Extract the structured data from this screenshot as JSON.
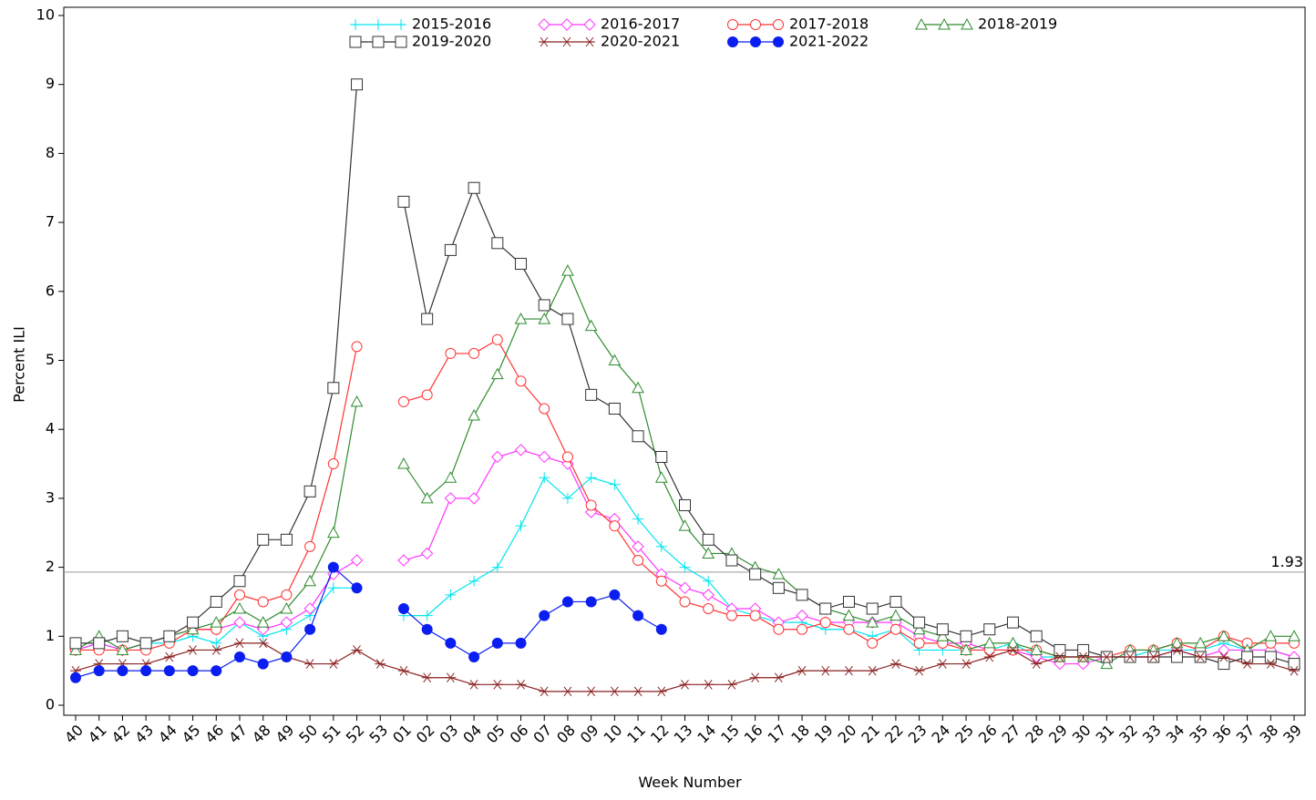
{
  "chart_data": {
    "type": "line",
    "x_label": "Week Number",
    "y_label": "Percent ILI",
    "categories": [
      "40",
      "41",
      "42",
      "43",
      "44",
      "45",
      "46",
      "47",
      "48",
      "49",
      "50",
      "51",
      "52",
      "53",
      "01",
      "02",
      "03",
      "04",
      "05",
      "06",
      "07",
      "08",
      "09",
      "10",
      "11",
      "12",
      "13",
      "14",
      "15",
      "16",
      "17",
      "18",
      "19",
      "20",
      "21",
      "22",
      "23",
      "24",
      "25",
      "26",
      "27",
      "28",
      "29",
      "30",
      "31",
      "32",
      "33",
      "34",
      "35",
      "36",
      "37",
      "38",
      "39"
    ],
    "ylim": [
      0,
      10
    ],
    "yticks": [
      0,
      1,
      2,
      3,
      4,
      5,
      6,
      7,
      8,
      9,
      10
    ],
    "baseline": 1.93,
    "series": [
      {
        "name": "2015-2016",
        "color": "#00e5ee",
        "marker": "plus",
        "values": [
          0.8,
          0.9,
          0.8,
          0.9,
          0.9,
          1.0,
          0.9,
          1.2,
          1.0,
          1.1,
          1.3,
          1.7,
          1.7,
          null,
          1.3,
          1.3,
          1.6,
          1.8,
          2.0,
          2.6,
          3.3,
          3.0,
          3.3,
          3.2,
          2.7,
          2.3,
          2.0,
          1.8,
          1.4,
          1.3,
          1.2,
          1.2,
          1.1,
          1.1,
          1.0,
          1.1,
          0.8,
          0.8,
          0.8,
          0.8,
          0.9,
          0.7,
          0.7,
          0.7,
          0.7,
          0.7,
          0.8,
          0.8,
          0.8,
          0.9,
          0.8,
          0.8,
          0.7
        ]
      },
      {
        "name": "2016-2017",
        "color": "#ff33ff",
        "marker": "diamond",
        "values": [
          0.8,
          0.9,
          0.8,
          0.9,
          1.0,
          1.1,
          1.1,
          1.2,
          1.1,
          1.2,
          1.4,
          1.9,
          2.1,
          null,
          2.1,
          2.2,
          3.0,
          3.0,
          3.6,
          3.7,
          3.6,
          3.5,
          2.8,
          2.7,
          2.3,
          1.9,
          1.7,
          1.6,
          1.4,
          1.4,
          1.2,
          1.3,
          1.2,
          1.2,
          1.2,
          1.2,
          1.0,
          0.9,
          0.9,
          0.8,
          0.8,
          0.7,
          0.6,
          0.6,
          0.7,
          0.7,
          0.7,
          0.8,
          0.7,
          0.8,
          0.8,
          0.8,
          0.7
        ]
      },
      {
        "name": "2017-2018",
        "color": "#ff3333",
        "marker": "circle",
        "values": [
          0.8,
          0.8,
          0.8,
          0.8,
          0.9,
          1.1,
          1.1,
          1.6,
          1.5,
          1.6,
          2.3,
          3.5,
          5.2,
          null,
          4.4,
          4.5,
          5.1,
          5.1,
          5.3,
          4.7,
          4.3,
          3.6,
          2.9,
          2.6,
          2.1,
          1.8,
          1.5,
          1.4,
          1.3,
          1.3,
          1.1,
          1.1,
          1.2,
          1.1,
          0.9,
          1.1,
          0.9,
          0.9,
          0.8,
          0.8,
          0.8,
          0.8,
          0.7,
          0.7,
          0.7,
          0.8,
          0.8,
          0.9,
          0.8,
          1.0,
          0.9,
          0.9,
          0.9
        ]
      },
      {
        "name": "2018-2019",
        "color": "#2e8b2e",
        "marker": "triangle",
        "values": [
          0.8,
          1.0,
          0.8,
          0.9,
          1.0,
          1.1,
          1.2,
          1.4,
          1.2,
          1.4,
          1.8,
          2.5,
          4.4,
          null,
          3.5,
          3.0,
          3.3,
          4.2,
          4.8,
          5.6,
          5.6,
          6.3,
          5.5,
          5.0,
          4.6,
          3.3,
          2.6,
          2.2,
          2.2,
          2.0,
          1.9,
          1.6,
          1.4,
          1.3,
          1.2,
          1.3,
          1.1,
          1.0,
          0.8,
          0.9,
          0.9,
          0.8,
          0.7,
          0.7,
          0.6,
          0.8,
          0.8,
          0.9,
          0.9,
          1.0,
          0.8,
          1.0,
          1.0
        ]
      },
      {
        "name": "2019-2020",
        "color": "#333333",
        "marker": "square",
        "values": [
          0.9,
          0.9,
          1.0,
          0.9,
          1.0,
          1.2,
          1.5,
          1.8,
          2.4,
          2.4,
          3.1,
          4.6,
          9.0,
          null,
          7.3,
          5.6,
          6.6,
          7.5,
          6.7,
          6.4,
          5.8,
          5.6,
          4.5,
          4.3,
          3.9,
          3.6,
          2.9,
          2.4,
          2.1,
          1.9,
          1.7,
          1.6,
          1.4,
          1.5,
          1.4,
          1.5,
          1.2,
          1.1,
          1.0,
          1.1,
          1.2,
          1.0,
          0.8,
          0.8,
          0.7,
          0.7,
          0.7,
          0.7,
          0.7,
          0.6,
          0.7,
          0.7,
          0.6
        ]
      },
      {
        "name": "2020-2021",
        "color": "#8b2222",
        "marker": "star",
        "values": [
          0.5,
          0.6,
          0.6,
          0.6,
          0.7,
          0.8,
          0.8,
          0.9,
          0.9,
          0.7,
          0.6,
          0.6,
          0.8,
          0.6,
          0.5,
          0.4,
          0.4,
          0.3,
          0.3,
          0.3,
          0.2,
          0.2,
          0.2,
          0.2,
          0.2,
          0.2,
          0.3,
          0.3,
          0.3,
          0.4,
          0.4,
          0.5,
          0.5,
          0.5,
          0.5,
          0.6,
          0.5,
          0.6,
          0.6,
          0.7,
          0.8,
          0.6,
          0.7,
          0.7,
          0.7,
          0.7,
          0.7,
          0.8,
          0.7,
          0.7,
          0.6,
          0.6,
          0.5
        ]
      },
      {
        "name": "2021-2022",
        "color": "#0a1ef0",
        "marker": "dot",
        "values": [
          0.4,
          0.5,
          0.5,
          0.5,
          0.5,
          0.5,
          0.5,
          0.7,
          0.6,
          0.7,
          1.1,
          2.0,
          1.7,
          null,
          1.4,
          1.1,
          0.9,
          0.7,
          0.9,
          0.9,
          1.3,
          1.5,
          1.5,
          1.6,
          1.3,
          1.1,
          null,
          null,
          null,
          null,
          null,
          null,
          null,
          null,
          null,
          null,
          null,
          null,
          null,
          null,
          null,
          null,
          null,
          null,
          null,
          null,
          null,
          null,
          null,
          null,
          null,
          null,
          null
        ]
      }
    ]
  }
}
